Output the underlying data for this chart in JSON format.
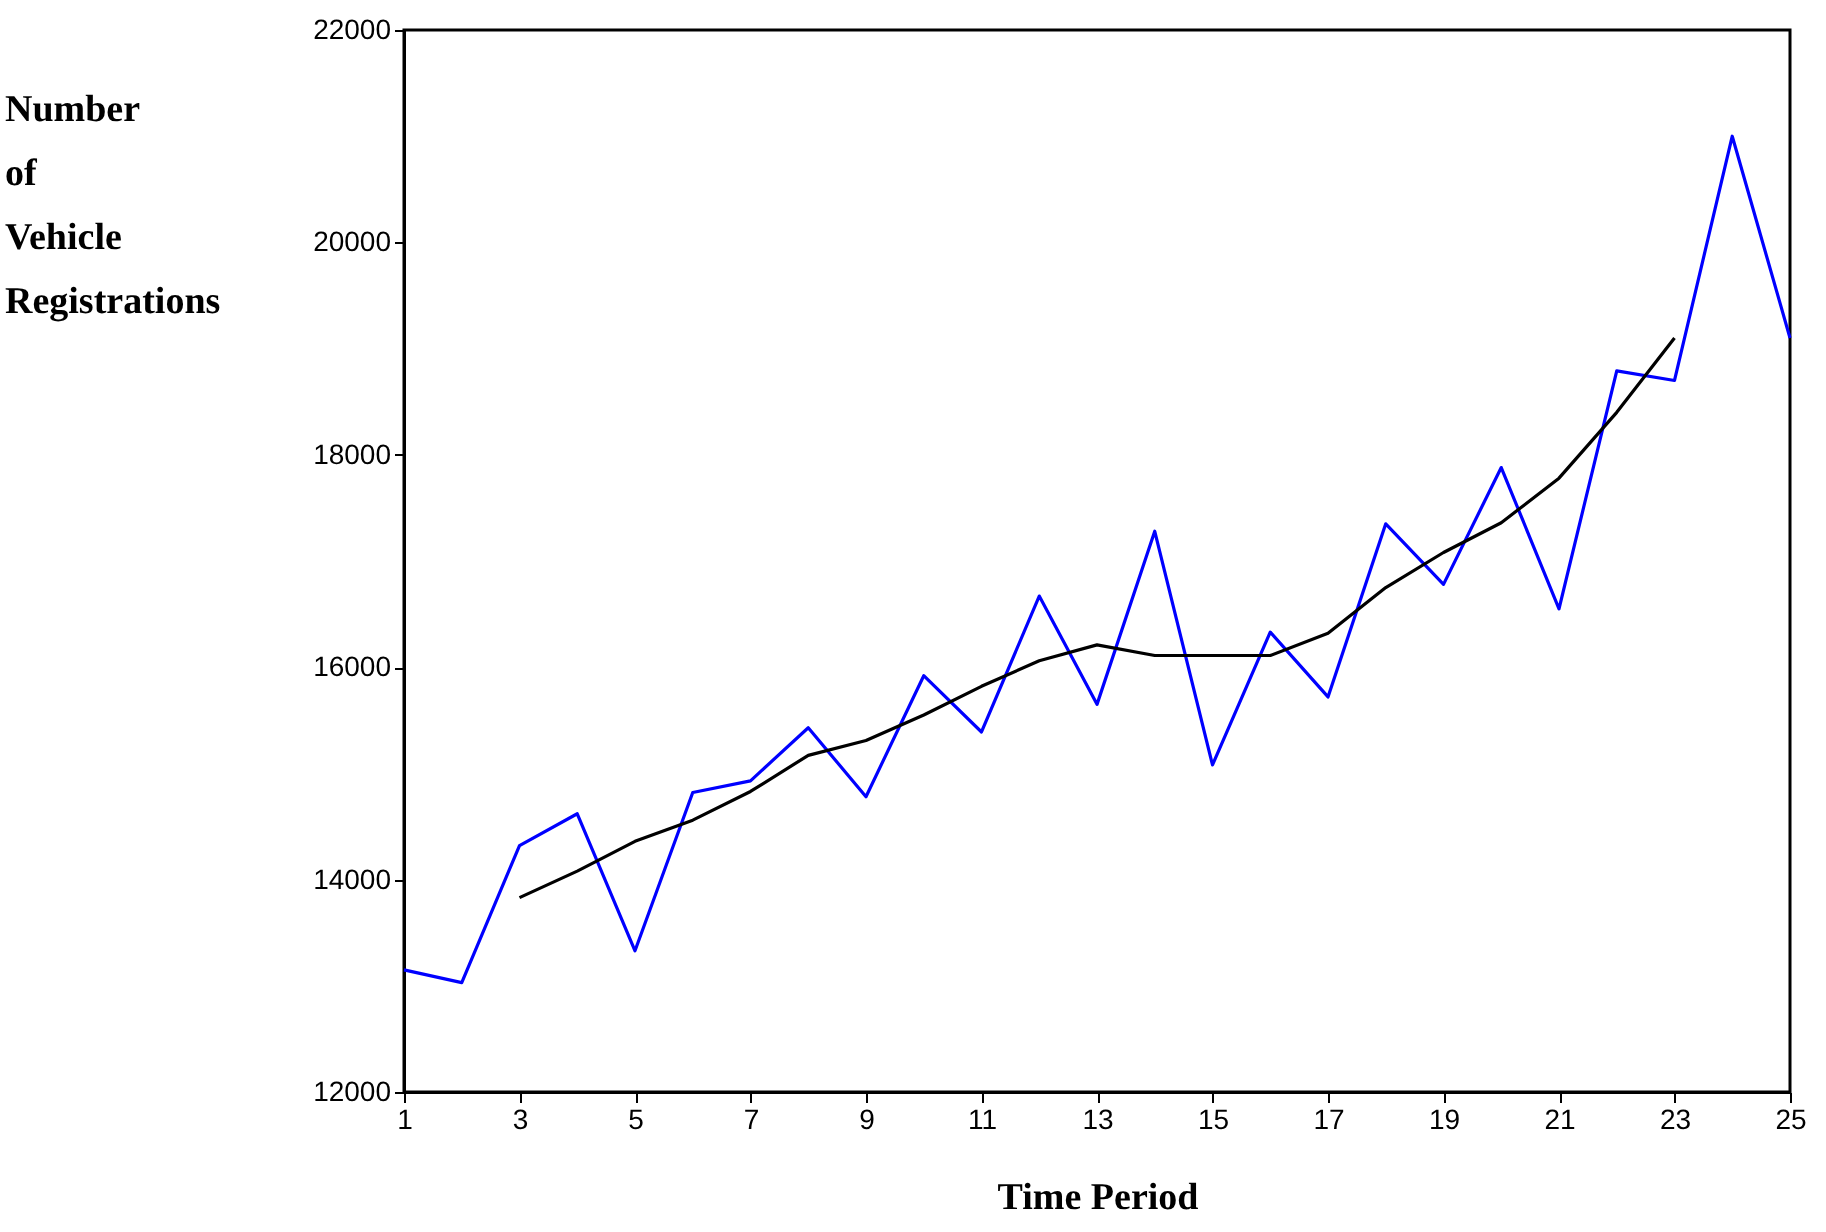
{
  "chart_data": {
    "type": "line",
    "xlabel": "Time Period",
    "ylabel": "Number\nof\nVehicle\nRegistrations",
    "x": [
      1,
      2,
      3,
      4,
      5,
      6,
      7,
      8,
      9,
      10,
      11,
      12,
      13,
      14,
      15,
      16,
      17,
      18,
      19,
      20,
      21,
      22,
      23,
      24,
      25
    ],
    "series": [
      {
        "color": "#0000ff",
        "values": [
          13150,
          13030,
          14320,
          14620,
          13330,
          14820,
          14930,
          15430,
          14780,
          15920,
          15390,
          16670,
          15650,
          17280,
          15080,
          16330,
          15720,
          17350,
          16780,
          17880,
          16550,
          18790,
          18700,
          21000,
          19100
        ]
      },
      {
        "color": "#000000",
        "values": [
          null,
          null,
          13830,
          14080,
          14360,
          14560,
          14830,
          15170,
          15310,
          15550,
          15820,
          16060,
          16210,
          16110,
          16110,
          16110,
          16320,
          16750,
          17080,
          17360,
          17780,
          18400,
          19100,
          null,
          null
        ]
      }
    ],
    "xlim": [
      1,
      25
    ],
    "xticks": [
      1,
      3,
      5,
      7,
      9,
      11,
      13,
      15,
      17,
      19,
      21,
      23,
      25
    ],
    "ylim": [
      12000,
      22000
    ],
    "yticks": [
      12000,
      14000,
      16000,
      18000,
      20000,
      22000
    ],
    "grid": false,
    "marker": "none",
    "line_style": "solid"
  }
}
